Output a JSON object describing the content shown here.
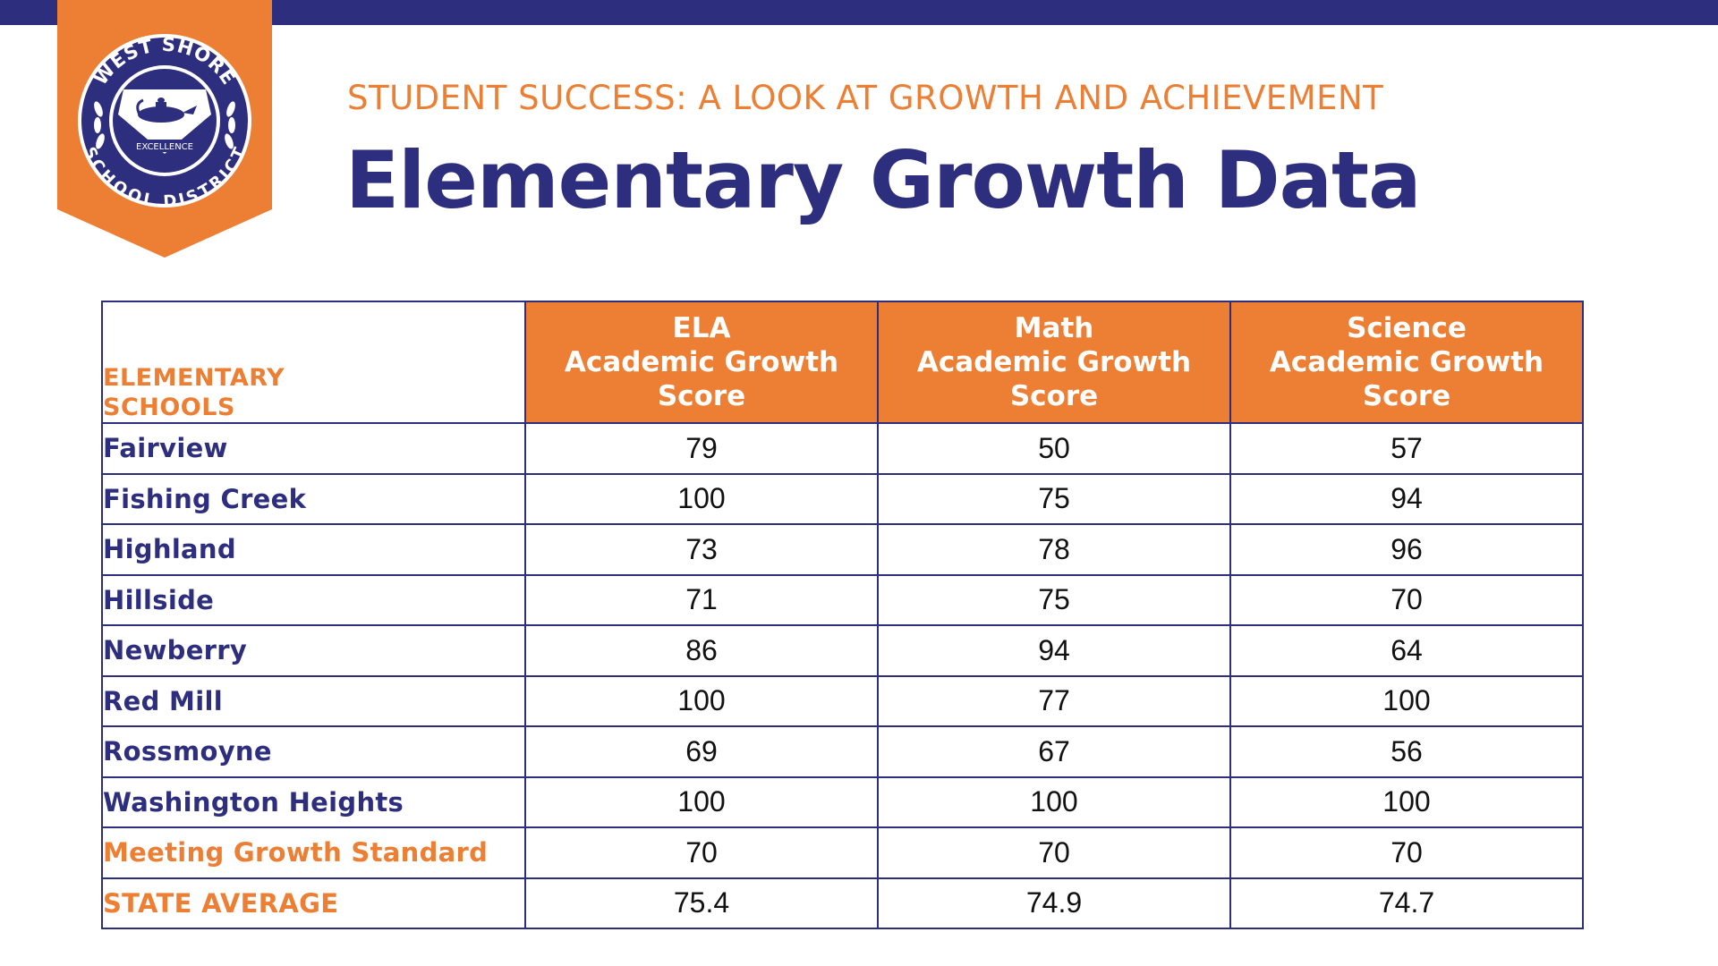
{
  "colors": {
    "navy": "#2e2e7f",
    "orange": "#ec7f33",
    "white": "#ffffff"
  },
  "logo": {
    "top_text": "WEST SHORE",
    "bottom_text": "SCHOOL DISTRICT",
    "banner_text": "EXCELLENCE",
    "icon": "oil-lamp-emblem-icon"
  },
  "header": {
    "subtitle": "STUDENT SUCCESS: A LOOK AT GROWTH AND ACHIEVEMENT",
    "title": "Elementary Growth Data"
  },
  "table": {
    "corner_header": [
      "ELEMENTARY",
      "SCHOOLS"
    ],
    "columns": [
      [
        "ELA",
        "Academic Growth",
        "Score"
      ],
      [
        "Math",
        "Academic Growth",
        "Score"
      ],
      [
        "Science",
        "Academic Growth",
        "Score"
      ]
    ],
    "rows": [
      {
        "school": "Fairview",
        "values": [
          "79",
          "50",
          "57"
        ]
      },
      {
        "school": "Fishing Creek",
        "values": [
          "100",
          "75",
          "94"
        ]
      },
      {
        "school": "Highland",
        "values": [
          "73",
          "78",
          "96"
        ]
      },
      {
        "school": "Hillside",
        "values": [
          "71",
          "75",
          "70"
        ]
      },
      {
        "school": "Newberry",
        "values": [
          "86",
          "94",
          "64"
        ]
      },
      {
        "school": "Red Mill",
        "values": [
          "100",
          "77",
          "100"
        ]
      },
      {
        "school": "Rossmoyne",
        "values": [
          "69",
          "67",
          "56"
        ]
      },
      {
        "school": "Washington Heights",
        "values": [
          "100",
          "100",
          "100"
        ]
      },
      {
        "school": "Meeting Growth Standard",
        "values": [
          "70",
          "70",
          "70"
        ]
      },
      {
        "school": "STATE AVERAGE",
        "values": [
          "75.4",
          "74.9",
          "74.7"
        ]
      }
    ]
  }
}
